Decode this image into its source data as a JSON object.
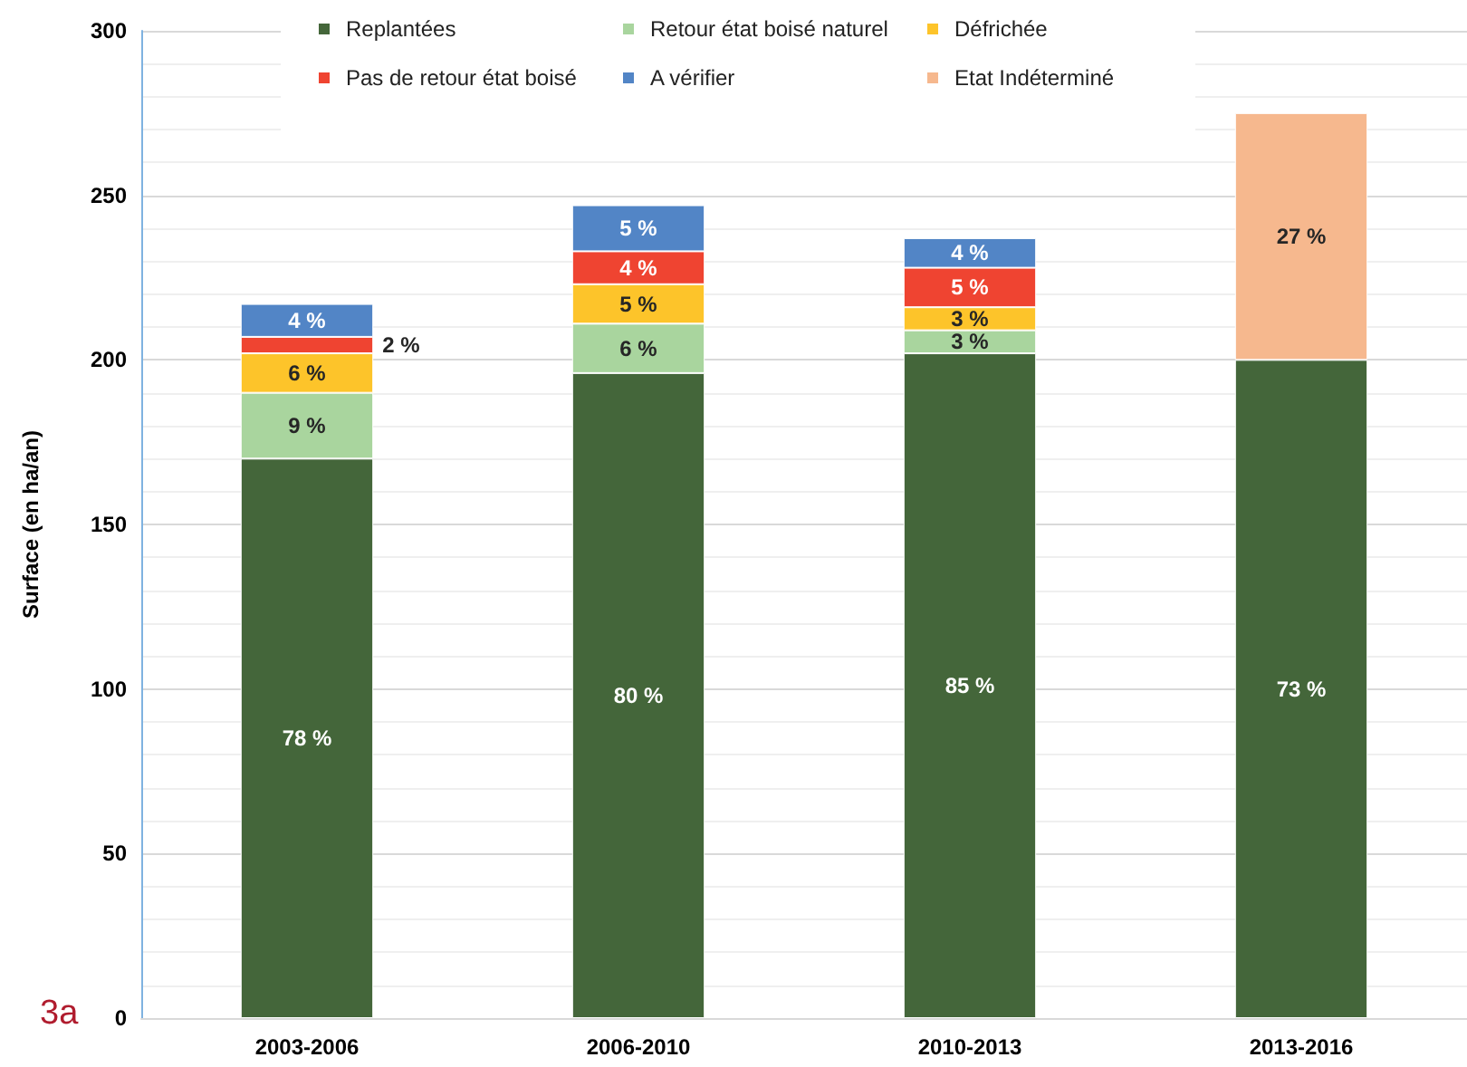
{
  "chart_data": {
    "type": "bar",
    "stacked": true,
    "ylabel": "Surface (en ha/an)",
    "categories": [
      "2003-2006",
      "2006-2010",
      "2010-2013",
      "2013-2016"
    ],
    "series": [
      {
        "name": "Replantées",
        "color": "#44663a",
        "values": [
          170,
          196,
          202,
          200
        ]
      },
      {
        "name": "Retour état boisé naturel",
        "color": "#a9d59e",
        "values": [
          20,
          15,
          7,
          null
        ]
      },
      {
        "name": "Défrichée",
        "color": "#fdc42a",
        "values": [
          12,
          12,
          7,
          null
        ]
      },
      {
        "name": "Pas de retour état boisé",
        "color": "#ef4431",
        "values": [
          5,
          10,
          12,
          null
        ]
      },
      {
        "name": "A vérifier",
        "color": "#5285c6",
        "values": [
          10,
          14,
          9,
          null
        ]
      },
      {
        "name": "Etat Indéterminé",
        "color": "#f6b88e",
        "values": [
          null,
          null,
          null,
          75
        ]
      }
    ],
    "ylim": [
      0,
      300
    ],
    "yticks": [
      0,
      50,
      100,
      150,
      200,
      250,
      300
    ],
    "grid": true,
    "legend": "top",
    "annotations": [
      "78 %",
      "9 %",
      "6 %",
      "2 %",
      "4 %",
      "80 %",
      "6 %",
      "5 %",
      "4 %",
      "5 %",
      "85 %",
      "3 %",
      "3 %",
      "5 %",
      "4 %",
      "73 %",
      "27 %",
      "3a"
    ]
  }
}
